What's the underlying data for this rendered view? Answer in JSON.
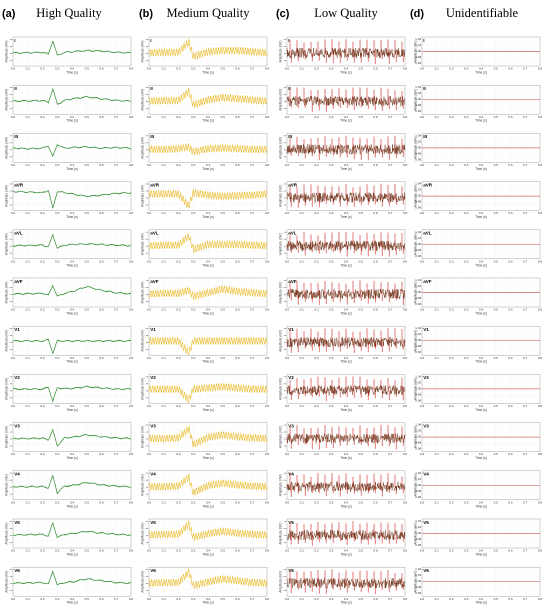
{
  "figure": {
    "columns": [
      {
        "letter": "(a)",
        "title": "High Quality",
        "color": "#2e8b2e",
        "style": "clean"
      },
      {
        "letter": "(b)",
        "title": "Medium Quality",
        "color": "#e8b820",
        "style": "medium"
      },
      {
        "letter": "(c)",
        "title": "Low Quality",
        "color": "#d42020",
        "overlay_color": "#6b2a10",
        "style": "low"
      },
      {
        "letter": "(d)",
        "title": "Unidentifiable",
        "color": "#d07060",
        "style": "flat"
      }
    ],
    "leads": [
      "I",
      "II",
      "III",
      "aVR",
      "aVL",
      "aVF",
      "V1",
      "V2",
      "V3",
      "V4",
      "V5",
      "V6"
    ],
    "xlabel": "Time (s)",
    "ylabel": "Amplitude (mV)",
    "x_ticks": [
      "0.0",
      "0.1",
      "0.2",
      "0.3",
      "0.4",
      "0.5",
      "0.6",
      "0.7",
      "0.8"
    ],
    "flat_y_ticks": [
      "1.04",
      "1.02",
      "1.00",
      "0.98",
      "0.96"
    ]
  },
  "chart_data": [
    {
      "type": "line",
      "title": "High Quality",
      "xlabel": "Time (s)",
      "ylabel": "Amplitude (mV)",
      "xlim": [
        0,
        0.8
      ],
      "series": [
        {
          "name": "I",
          "x": [
            0,
            0.1,
            0.2,
            0.24,
            0.27,
            0.3,
            0.35,
            0.4,
            0.5,
            0.6,
            0.7,
            0.8
          ],
          "y": [
            0,
            0.02,
            0.05,
            -0.1,
            1.0,
            -0.2,
            0.05,
            0.1,
            0.2,
            0.15,
            0.05,
            0
          ]
        },
        {
          "name": "II",
          "x": [
            0,
            0.1,
            0.2,
            0.24,
            0.27,
            0.3,
            0.35,
            0.4,
            0.5,
            0.6,
            0.7,
            0.8
          ],
          "y": [
            0,
            0.03,
            0.05,
            -0.1,
            1.0,
            -0.25,
            0.05,
            0.2,
            0.35,
            0.2,
            0.05,
            0
          ]
        },
        {
          "name": "III",
          "x": [
            0,
            0.1,
            0.2,
            0.24,
            0.27,
            0.3,
            0.35,
            0.4,
            0.5,
            0.6,
            0.7,
            0.8
          ],
          "y": [
            0.1,
            0.05,
            0.1,
            0.3,
            -0.6,
            0.4,
            0.1,
            0.15,
            0.2,
            0.1,
            0.15,
            0.1
          ]
        },
        {
          "name": "aVR",
          "x": [
            0,
            0.1,
            0.2,
            0.24,
            0.27,
            0.3,
            0.35,
            0.4,
            0.5,
            0.6,
            0.7,
            0.8
          ],
          "y": [
            0.5,
            0.45,
            0.4,
            0.6,
            -0.9,
            0.5,
            0.4,
            0.3,
            0.1,
            0.2,
            0.35,
            0.4
          ]
        },
        {
          "name": "aVL",
          "x": [
            0,
            0.1,
            0.2,
            0.24,
            0.27,
            0.3,
            0.35,
            0.4,
            0.5,
            0.6,
            0.7,
            0.8
          ],
          "y": [
            0,
            0.02,
            0.05,
            -0.1,
            0.9,
            -0.2,
            0.05,
            0.1,
            0.15,
            0.1,
            0.05,
            0
          ]
        },
        {
          "name": "aVF",
          "x": [
            0,
            0.1,
            0.2,
            0.24,
            0.27,
            0.3,
            0.35,
            0.4,
            0.5,
            0.6,
            0.7,
            0.8
          ],
          "y": [
            0,
            0.02,
            0.05,
            -0.1,
            0.7,
            -0.2,
            0.05,
            0.2,
            0.6,
            0.3,
            0.1,
            0
          ]
        },
        {
          "name": "V1",
          "x": [
            0,
            0.1,
            0.2,
            0.24,
            0.27,
            0.3,
            0.35,
            0.4,
            0.5,
            0.6,
            0.7,
            0.8
          ],
          "y": [
            0.1,
            0.1,
            0.1,
            0.2,
            -0.9,
            0.1,
            0.1,
            0.1,
            0.1,
            0.1,
            0.1,
            0.1
          ]
        },
        {
          "name": "V2",
          "x": [
            0,
            0.1,
            0.2,
            0.24,
            0.27,
            0.3,
            0.35,
            0.4,
            0.5,
            0.6,
            0.7,
            0.8
          ],
          "y": [
            0.1,
            0.1,
            0.1,
            0.25,
            -0.9,
            0.2,
            0.15,
            0.15,
            0.3,
            0.2,
            0.1,
            0.1
          ]
        },
        {
          "name": "V3",
          "x": [
            0,
            0.1,
            0.2,
            0.24,
            0.27,
            0.3,
            0.35,
            0.4,
            0.5,
            0.6,
            0.7,
            0.8
          ],
          "y": [
            0,
            0,
            0.02,
            -0.1,
            0.7,
            -0.6,
            0.05,
            0.1,
            0.3,
            0.15,
            0.05,
            0
          ]
        },
        {
          "name": "V4",
          "x": [
            0,
            0.1,
            0.2,
            0.24,
            0.27,
            0.3,
            0.35,
            0.4,
            0.5,
            0.6,
            0.7,
            0.8
          ],
          "y": [
            0,
            0,
            0.02,
            -0.1,
            0.9,
            -0.5,
            0.05,
            0.1,
            0.35,
            0.15,
            0.05,
            0
          ]
        },
        {
          "name": "V5",
          "x": [
            0,
            0.1,
            0.2,
            0.24,
            0.27,
            0.3,
            0.35,
            0.4,
            0.5,
            0.6,
            0.7,
            0.8
          ],
          "y": [
            0,
            0.02,
            0.05,
            -0.1,
            1.0,
            -0.2,
            0.05,
            0.1,
            0.3,
            0.15,
            0.05,
            0
          ]
        },
        {
          "name": "V6",
          "x": [
            0,
            0.1,
            0.2,
            0.24,
            0.27,
            0.3,
            0.35,
            0.4,
            0.5,
            0.6,
            0.7,
            0.8
          ],
          "y": [
            0,
            0.02,
            0.05,
            -0.1,
            1.0,
            -0.15,
            0.05,
            0.1,
            0.35,
            0.2,
            0.05,
            0
          ]
        }
      ]
    },
    {
      "type": "line",
      "title": "Medium Quality",
      "xlabel": "Time (s)",
      "ylabel": "Amplitude (mV)",
      "xlim": [
        0,
        0.8
      ],
      "series": [
        {
          "name": "I",
          "x": [
            0,
            0.1,
            0.2,
            0.27,
            0.3,
            0.4,
            0.5,
            0.6,
            0.7,
            0.8
          ],
          "y": [
            0,
            0.05,
            0.05,
            0.9,
            -0.3,
            0.1,
            0.2,
            0.2,
            0.1,
            0
          ]
        },
        {
          "name": "II",
          "x": [
            0,
            0.1,
            0.2,
            0.27,
            0.3,
            0.4,
            0.5,
            0.6,
            0.7,
            0.8
          ],
          "y": [
            0,
            0.05,
            0.05,
            0.8,
            -0.3,
            0.1,
            0.3,
            0.2,
            0.1,
            0
          ]
        },
        {
          "name": "III",
          "x": [
            0,
            0.1,
            0.2,
            0.27,
            0.3,
            0.4,
            0.5,
            0.6,
            0.7,
            0.8
          ],
          "y": [
            0,
            0,
            0.05,
            0.2,
            -0.2,
            0.05,
            0.1,
            0.05,
            0,
            0
          ]
        },
        {
          "name": "aVR",
          "x": [
            0,
            0.1,
            0.2,
            0.27,
            0.3,
            0.4,
            0.5,
            0.6,
            0.7,
            0.8
          ],
          "y": [
            0.3,
            0.3,
            0.3,
            -0.7,
            0.4,
            0.2,
            0.1,
            0.15,
            0.2,
            0.3
          ]
        },
        {
          "name": "aVL",
          "x": [
            0,
            0.1,
            0.2,
            0.27,
            0.3,
            0.4,
            0.5,
            0.6,
            0.7,
            0.8
          ],
          "y": [
            0,
            0.05,
            0.05,
            0.8,
            -0.3,
            0.1,
            0.1,
            0.1,
            0.05,
            0
          ]
        },
        {
          "name": "aVF",
          "x": [
            0,
            0.1,
            0.2,
            0.27,
            0.3,
            0.4,
            0.5,
            0.6,
            0.7,
            0.8
          ],
          "y": [
            0,
            0.05,
            0.05,
            0.3,
            -0.2,
            0.1,
            0.4,
            0.2,
            0.1,
            0
          ]
        },
        {
          "name": "V1",
          "x": [
            0,
            0.1,
            0.2,
            0.27,
            0.3,
            0.4,
            0.5,
            0.6,
            0.7,
            0.8
          ],
          "y": [
            0.1,
            0.1,
            0.1,
            -0.9,
            0.1,
            0.1,
            0.1,
            0.1,
            0.1,
            0.1
          ]
        },
        {
          "name": "V2",
          "x": [
            0,
            0.1,
            0.2,
            0.27,
            0.3,
            0.4,
            0.5,
            0.6,
            0.7,
            0.8
          ],
          "y": [
            0.1,
            0.1,
            0.1,
            -0.8,
            0.1,
            0.2,
            0.3,
            0.2,
            0.1,
            0.1
          ]
        },
        {
          "name": "V3",
          "x": [
            0,
            0.1,
            0.2,
            0.27,
            0.3,
            0.4,
            0.5,
            0.6,
            0.7,
            0.8
          ],
          "y": [
            0,
            0,
            0.05,
            0.8,
            -0.5,
            0.1,
            0.3,
            0.15,
            0.05,
            0
          ]
        },
        {
          "name": "V4",
          "x": [
            0,
            0.1,
            0.2,
            0.27,
            0.3,
            0.4,
            0.5,
            0.6,
            0.7,
            0.8
          ],
          "y": [
            0,
            0,
            0.05,
            0.8,
            -0.5,
            0.1,
            0.3,
            0.15,
            0.05,
            0
          ]
        },
        {
          "name": "V5",
          "x": [
            0,
            0.1,
            0.2,
            0.27,
            0.3,
            0.4,
            0.5,
            0.6,
            0.7,
            0.8
          ],
          "y": [
            0,
            0.05,
            0.05,
            0.9,
            -0.2,
            0.1,
            0.3,
            0.15,
            0.05,
            0
          ]
        },
        {
          "name": "V6",
          "x": [
            0,
            0.1,
            0.2,
            0.27,
            0.3,
            0.4,
            0.5,
            0.6,
            0.7,
            0.8
          ],
          "y": [
            0,
            0.05,
            0.05,
            0.9,
            -0.2,
            0.1,
            0.35,
            0.2,
            0.05,
            0
          ]
        }
      ]
    },
    {
      "type": "line",
      "title": "Low Quality",
      "xlabel": "Time (s)",
      "ylabel": "Amplitude (mV)",
      "xlim": [
        0,
        0.8
      ],
      "series": [
        {
          "name": "I",
          "x": [
            0,
            0.8
          ],
          "y": [
            0,
            0
          ]
        },
        {
          "name": "II",
          "x": [
            0,
            0.8
          ],
          "y": [
            0,
            0
          ]
        },
        {
          "name": "III",
          "x": [
            0,
            0.8
          ],
          "y": [
            0,
            0
          ]
        },
        {
          "name": "aVR",
          "x": [
            0,
            0.8
          ],
          "y": [
            0,
            0
          ]
        },
        {
          "name": "aVL",
          "x": [
            0,
            0.8
          ],
          "y": [
            0,
            0
          ]
        },
        {
          "name": "aVF",
          "x": [
            0,
            0.8
          ],
          "y": [
            0,
            0
          ]
        },
        {
          "name": "V1",
          "x": [
            0,
            0.8
          ],
          "y": [
            0,
            0
          ]
        },
        {
          "name": "V2",
          "x": [
            0,
            0.8
          ],
          "y": [
            0,
            0
          ]
        },
        {
          "name": "V3",
          "x": [
            0,
            0.8
          ],
          "y": [
            0,
            0
          ]
        },
        {
          "name": "V4",
          "x": [
            0,
            0.8
          ],
          "y": [
            0,
            0
          ]
        },
        {
          "name": "V5",
          "x": [
            0,
            0.8
          ],
          "y": [
            0,
            0
          ]
        },
        {
          "name": "V6",
          "x": [
            0,
            0.8
          ],
          "y": [
            0,
            0
          ]
        }
      ]
    },
    {
      "type": "line",
      "title": "Unidentifiable",
      "xlabel": "Time (s)",
      "ylabel": "Amplitude (mV)",
      "xlim": [
        0,
        0.8
      ],
      "ylim": [
        0.96,
        1.04
      ],
      "series": [
        {
          "name": "I",
          "x": [
            0,
            0.8
          ],
          "y": [
            1.0,
            1.0
          ]
        },
        {
          "name": "II",
          "x": [
            0,
            0.8
          ],
          "y": [
            1.0,
            1.0
          ]
        },
        {
          "name": "III",
          "x": [
            0,
            0.8
          ],
          "y": [
            1.0,
            1.0
          ]
        },
        {
          "name": "aVR",
          "x": [
            0,
            0.8
          ],
          "y": [
            1.0,
            1.0
          ]
        },
        {
          "name": "aVL",
          "x": [
            0,
            0.8
          ],
          "y": [
            1.0,
            1.0
          ]
        },
        {
          "name": "aVF",
          "x": [
            0,
            0.8
          ],
          "y": [
            1.0,
            1.0
          ]
        },
        {
          "name": "V1",
          "x": [
            0,
            0.8
          ],
          "y": [
            1.0,
            1.0
          ]
        },
        {
          "name": "V2",
          "x": [
            0,
            0.8
          ],
          "y": [
            1.0,
            1.0
          ]
        },
        {
          "name": "V3",
          "x": [
            0,
            0.8
          ],
          "y": [
            1.0,
            1.0
          ]
        },
        {
          "name": "V4",
          "x": [
            0,
            0.8
          ],
          "y": [
            1.0,
            1.0
          ]
        },
        {
          "name": "V5",
          "x": [
            0,
            0.8
          ],
          "y": [
            1.0,
            1.0
          ]
        },
        {
          "name": "V6",
          "x": [
            0,
            0.8
          ],
          "y": [
            1.0,
            1.0
          ]
        }
      ]
    }
  ]
}
